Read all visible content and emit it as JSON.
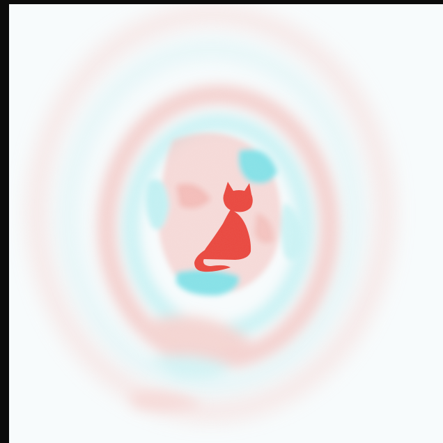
{
  "colors": {
    "background": "#f7fbfc",
    "frame": "#0b0b0b",
    "accent_red": "#e8453c",
    "halo_red": "#f2b3b0",
    "halo_cyan": "#8fe6ea"
  },
  "icons": {
    "center": "cat-icon"
  }
}
